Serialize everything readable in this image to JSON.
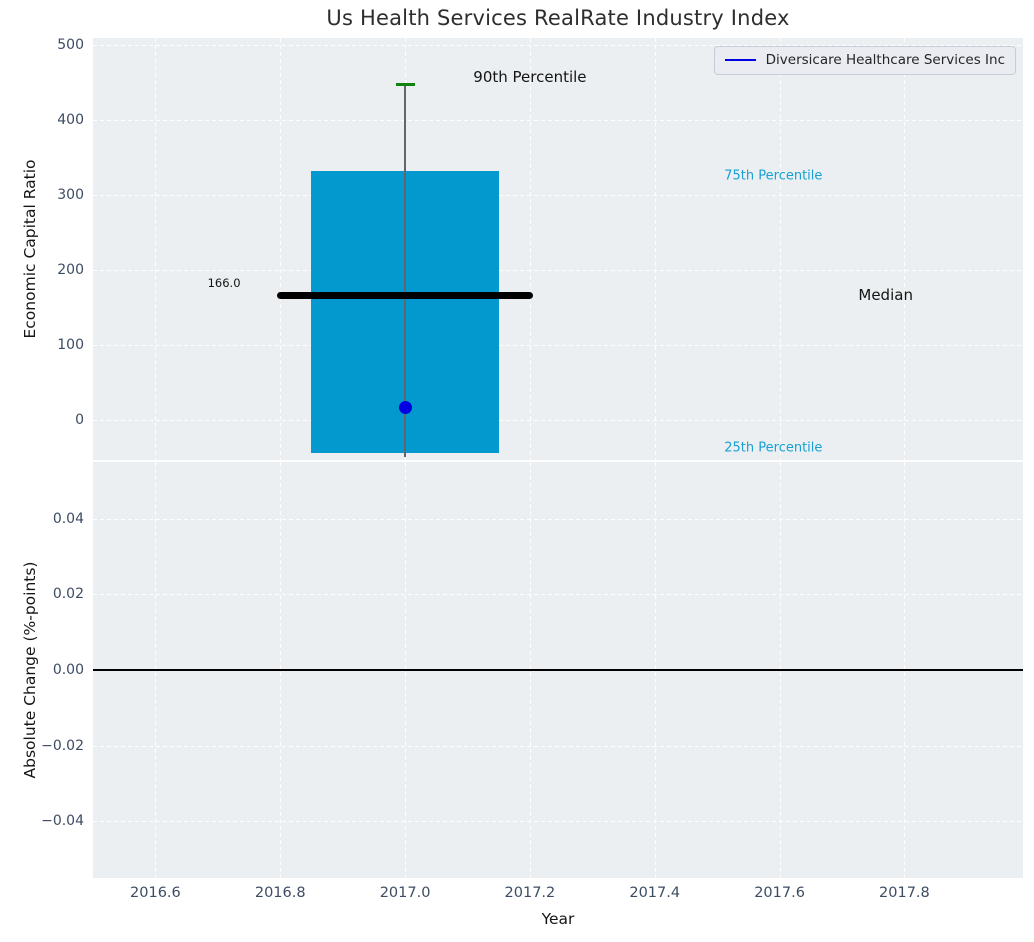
{
  "figure": {
    "title": "Us Health Services RealRate Industry Index",
    "xlabel": "Year",
    "plot_background": "#ebeff1",
    "grid_color": "#ffffff",
    "tick_color": "#3d4c63"
  },
  "legend": {
    "label": "Diversicare Healthcare Services Inc",
    "line_color": "#0000e1"
  },
  "chart_data": [
    {
      "type": "box_percentile_bar",
      "title": "Us Health Services RealRate Industry Index",
      "ylabel": "Economic Capital Ratio",
      "xlabel": "Year",
      "xlim": [
        2016.5,
        2017.99
      ],
      "ylim": [
        -53,
        509
      ],
      "grid": "white-dashed",
      "xticks": {
        "values": [
          2016.6,
          2016.8,
          2017.0,
          2017.2,
          2017.4,
          2017.6,
          2017.8
        ],
        "labels": [
          "2016.6",
          "2016.8",
          "2017.0",
          "2017.2",
          "2017.4",
          "2017.6",
          "2017.8"
        ]
      },
      "yticks": {
        "values": [
          0,
          100,
          200,
          300,
          400,
          500
        ],
        "labels": [
          "0",
          "100",
          "200",
          "300",
          "400",
          "500"
        ]
      },
      "box": {
        "x_center": 2017.0,
        "bar_x_left": 2016.85,
        "bar_x_right": 2017.15,
        "p90": 447,
        "p75": 332,
        "median": 166.0,
        "p25": -44,
        "whisker_low": -49,
        "median_x_left": 2016.8,
        "median_x_right": 2017.2,
        "median_label": "166.0",
        "bar_color": "#0499ce",
        "whisker_color": "#60666d",
        "cap_color": "#0f820f",
        "median_color": "#000000"
      },
      "company_point": {
        "name": "Diversicare Healthcare Services Inc",
        "x": 2017.0,
        "y": 17,
        "color": "#0000e1"
      },
      "annotations": [
        {
          "text": "90th Percentile",
          "x": 2017.2,
          "y": 457,
          "color": "#141414",
          "size": 15
        },
        {
          "text": "75th Percentile",
          "x": 2017.59,
          "y": 325,
          "color": "#18a0d4",
          "size": 13
        },
        {
          "text": "Median",
          "x": 2017.77,
          "y": 167,
          "color": "#141414",
          "size": 15
        },
        {
          "text": "25th Percentile",
          "x": 2017.59,
          "y": -37,
          "color": "#18a0d4",
          "size": 13
        },
        {
          "text": "166.0",
          "x": 2016.71,
          "y": 183,
          "color": "#141414",
          "size": 11.5
        }
      ]
    },
    {
      "type": "line",
      "ylabel": "Absolute Change (%-points)",
      "xlim": [
        2016.5,
        2017.99
      ],
      "ylim": [
        -0.055,
        0.055
      ],
      "grid": "white-dashed",
      "yticks": {
        "values": [
          0.04,
          0.02,
          0.0,
          -0.02,
          -0.04
        ],
        "labels": [
          "0.04",
          "0.02",
          "0.00",
          "−0.02",
          "−0.04"
        ]
      },
      "zero_line": {
        "y": 0.0,
        "color": "#000000"
      },
      "series": []
    }
  ]
}
